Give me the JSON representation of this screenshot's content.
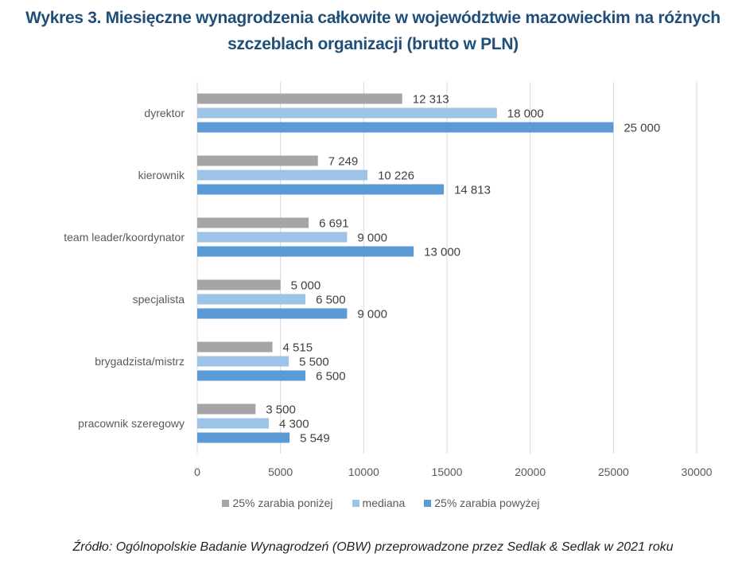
{
  "title_line1": "Wykres 3. Miesięczne wynagrodzenia całkowite w województwie mazowieckim na różnych",
  "title_line2": "szczeblach organizacji (brutto w PLN)",
  "source": "Źródło: Ogólnopolskie Badanie Wynagrodzeń (OBW) przeprowadzone przez Sedlak & Sedlak w 2021 roku",
  "chart_data": {
    "type": "bar",
    "orientation": "horizontal",
    "title": "Wykres 3. Miesięczne wynagrodzenia całkowite w województwie mazowieckim na różnych szczeblach organizacji (brutto w PLN)",
    "categories": [
      "dyrektor",
      "kierownik",
      "team leader/koordynator",
      "specjalista",
      "brygadzista/mistrz",
      "pracownik szeregowy"
    ],
    "series": [
      {
        "name": "25% zarabia poniżej",
        "color": "#a5a5a5",
        "values": [
          12313,
          7249,
          6691,
          5000,
          4515,
          3500
        ],
        "labels": [
          "12 313",
          "7 249",
          "6 691",
          "5 000",
          "4 515",
          "3 500"
        ]
      },
      {
        "name": "mediana",
        "color": "#9dc3e6",
        "values": [
          18000,
          10226,
          9000,
          6500,
          5500,
          4300
        ],
        "labels": [
          "18 000",
          "10 226",
          "9 000",
          "6 500",
          "5 500",
          "4 300"
        ]
      },
      {
        "name": "25% zarabia powyżej",
        "color": "#5b9bd5",
        "values": [
          25000,
          14813,
          13000,
          9000,
          6500,
          5549
        ],
        "labels": [
          "25 000",
          "14 813",
          "13 000",
          "9 000",
          "6 500",
          "5 549"
        ]
      }
    ],
    "xlim": [
      0,
      30000
    ],
    "xticks": [
      "0",
      "5000",
      "10000",
      "15000",
      "20000",
      "25000",
      "30000"
    ],
    "grid": true,
    "legend": "bottom"
  }
}
